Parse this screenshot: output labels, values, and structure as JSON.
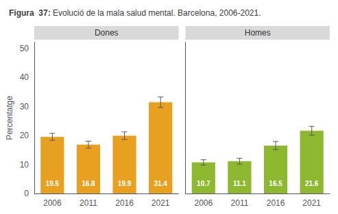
{
  "title": "Figura  37:",
  "subtitle": "Evolució de la mala salud mental. Barcelona, 2006-2021.",
  "chart_data": [
    {
      "type": "bar",
      "title": "Dones",
      "categories": [
        "2006",
        "2011",
        "2016",
        "2021"
      ],
      "values": [
        19.5,
        16.8,
        19.9,
        31.4
      ],
      "errors": [
        1.2,
        1.2,
        1.3,
        1.8
      ],
      "color": "#E8A020",
      "ylabel": "Percentatge",
      "ylim": [
        0,
        52
      ],
      "yticks": [
        0,
        10,
        20,
        30,
        40,
        50
      ],
      "grid": false,
      "data_labels": true
    },
    {
      "type": "bar",
      "title": "Homes",
      "categories": [
        "2006",
        "2011",
        "2016",
        "2021"
      ],
      "values": [
        10.7,
        11.1,
        16.5,
        21.6
      ],
      "errors": [
        0.9,
        1.0,
        1.4,
        1.5
      ],
      "color": "#8DB830",
      "ylim": [
        0,
        52
      ],
      "yticks": [
        0,
        10,
        20,
        30,
        40,
        50
      ],
      "grid": false,
      "data_labels": true,
      "tick_labels": "x"
    }
  ]
}
